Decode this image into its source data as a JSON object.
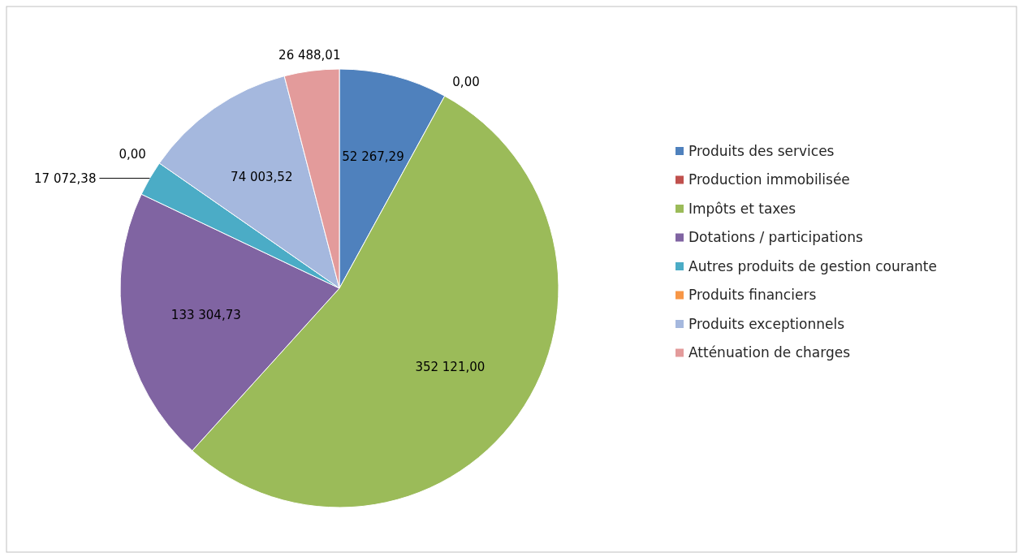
{
  "chart_data": {
    "type": "pie",
    "categories": [
      "Produits des services",
      "Production immobilisée",
      "Impôts et taxes",
      "Dotations / participations",
      "Autres produits de gestion courante",
      "Produits financiers",
      "Produits exceptionnels",
      "Atténuation de charges"
    ],
    "values": [
      52267.29,
      0,
      352121.0,
      133304.73,
      17072.38,
      0,
      74003.52,
      26488.01
    ],
    "value_labels": [
      "52 267,29",
      "0,00",
      "352 121,00",
      "133 304,73",
      "17 072,38",
      "0,00",
      "74 003,52",
      "26 488,01"
    ],
    "colors": [
      "#4f81bd",
      "#c0504d",
      "#9bbb59",
      "#8064a2",
      "#4bacc6",
      "#f79646",
      "#a5b8de",
      "#e39b9b"
    ],
    "legend": "right"
  }
}
